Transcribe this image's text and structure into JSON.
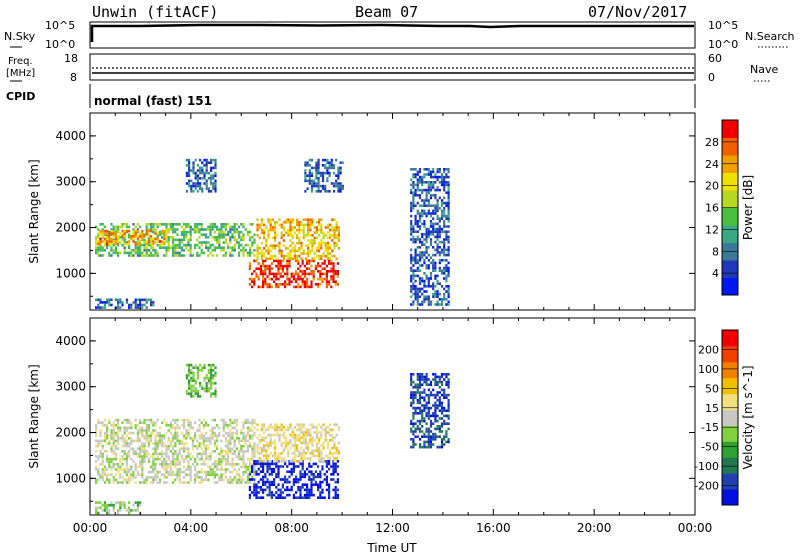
{
  "header": {
    "station": "Unwin (fitACF)",
    "beam": "Beam 07",
    "date": "07/Nov/2017"
  },
  "strip_nsky": {
    "left_label": "N.Sky",
    "left_ticks": [
      "10^5",
      "10^0"
    ],
    "right_label": "N.Search",
    "right_ticks": [
      "10^5",
      "10^0"
    ]
  },
  "strip_freq": {
    "left_label_1": "Freq.",
    "left_label_2": "[MHz]",
    "left_ticks": [
      "18",
      "8"
    ],
    "right_label": "Nave",
    "right_ticks": [
      "60",
      "0"
    ]
  },
  "strip_cpid": {
    "left_label": "CPID",
    "mode_text": "normal (fast) 151"
  },
  "chart_data": [
    {
      "type": "heatmap",
      "name": "power",
      "ylabel": "Slant Range [km]",
      "xlabel": "",
      "yticks": [
        "1000",
        "2000",
        "3000",
        "4000"
      ],
      "ylim": [
        200,
        4500
      ],
      "xlim_hours": [
        0,
        24
      ],
      "colorbar": {
        "label": "Power [dB]",
        "ticks": [
          "4",
          "8",
          "12",
          "16",
          "20",
          "24",
          "28"
        ],
        "range": [
          0,
          32
        ],
        "colors": [
          "#0018f0",
          "#2038b8",
          "#3a7a98",
          "#3aa882",
          "#48c040",
          "#b8d820",
          "#f0e000",
          "#f0a000",
          "#f06000",
          "#f00000"
        ]
      },
      "regions": [
        {
          "t0": 0.2,
          "t1": 6.5,
          "r0": 1400,
          "r1": 2100,
          "value": 14
        },
        {
          "t0": 0.2,
          "t1": 3.0,
          "r0": 1650,
          "r1": 1950,
          "value": 24
        },
        {
          "t0": 6.3,
          "t1": 9.8,
          "r0": 700,
          "r1": 1300,
          "value": 29
        },
        {
          "t0": 6.6,
          "t1": 9.9,
          "r0": 1300,
          "r1": 2200,
          "value": 22
        },
        {
          "t0": 3.8,
          "t1": 5.0,
          "r0": 2800,
          "r1": 3500,
          "value": 6
        },
        {
          "t0": 8.5,
          "t1": 10.0,
          "r0": 2800,
          "r1": 3500,
          "value": 7
        },
        {
          "t0": 12.7,
          "t1": 14.2,
          "r0": 300,
          "r1": 3300,
          "value": 6
        },
        {
          "t0": 0.2,
          "t1": 2.5,
          "r0": 250,
          "r1": 450,
          "value": 7
        }
      ]
    },
    {
      "type": "heatmap",
      "name": "velocity",
      "ylabel": "Slant Range [km]",
      "xlabel": "Time UT",
      "yticks": [
        "1000",
        "2000",
        "3000",
        "4000"
      ],
      "ylim": [
        200,
        4500
      ],
      "xticks": [
        "00:00",
        "04:00",
        "08:00",
        "12:00",
        "16:00",
        "20:00",
        "00:00"
      ],
      "xtick_hours": [
        0,
        4,
        8,
        12,
        16,
        20,
        24
      ],
      "xlim_hours": [
        0,
        24
      ],
      "colorbar": {
        "label": "Velocity [m s^-1]",
        "ticks": [
          "200",
          "100",
          "50",
          "15",
          "-15",
          "-50",
          "-100",
          "-200"
        ],
        "range": [
          -250,
          250
        ],
        "colors": [
          "#0010e0",
          "#2040b0",
          "#207850",
          "#30a030",
          "#80d040",
          "#c8c8c0",
          "#f0e080",
          "#f0c000",
          "#f08000",
          "#f04000",
          "#f00000"
        ]
      },
      "regions": [
        {
          "t0": 0.2,
          "t1": 6.5,
          "r0": 900,
          "r1": 2300,
          "value": 0
        },
        {
          "t0": 6.3,
          "t1": 9.8,
          "r0": 600,
          "r1": 1400,
          "value": -220
        },
        {
          "t0": 6.6,
          "t1": 9.9,
          "r0": 1400,
          "r1": 2200,
          "value": 40
        },
        {
          "t0": 3.8,
          "t1": 5.0,
          "r0": 2800,
          "r1": 3500,
          "value": -60
        },
        {
          "t0": 12.7,
          "t1": 14.2,
          "r0": 1700,
          "r1": 3300,
          "value": -180
        },
        {
          "t0": 0.2,
          "t1": 2.0,
          "r0": 250,
          "r1": 500,
          "value": -40
        }
      ]
    }
  ]
}
